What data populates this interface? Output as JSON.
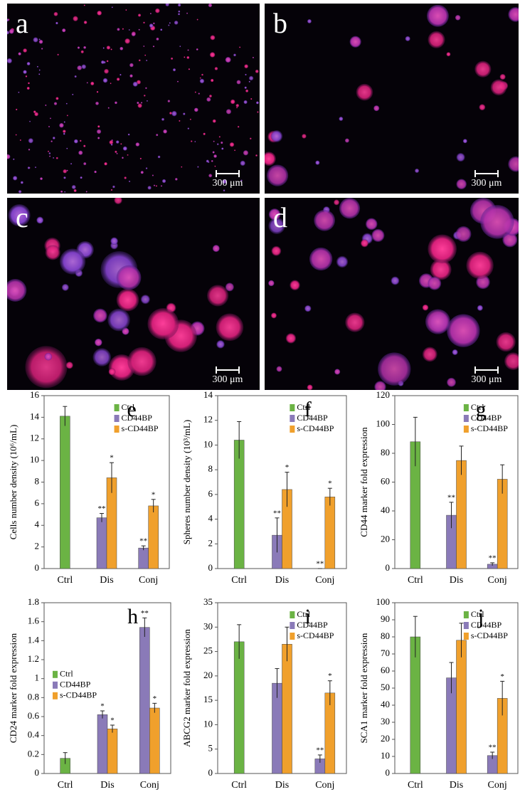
{
  "panels": [
    {
      "label": "a",
      "scale_bar": "300 μm"
    },
    {
      "label": "b",
      "scale_bar": "300 μm"
    },
    {
      "label": "c",
      "scale_bar": "300 μm"
    },
    {
      "label": "d",
      "scale_bar": "300 μm"
    }
  ],
  "chart_data": [
    {
      "type": "bar",
      "label": "e",
      "ylabel": "Cells number density (10⁶/mL)",
      "categories": [
        "Ctrl",
        "Dis",
        "Conj"
      ],
      "ylim": [
        0,
        16
      ],
      "yticks": [
        0,
        2,
        4,
        6,
        8,
        10,
        12,
        14,
        16
      ],
      "legend": "upper right",
      "series": [
        {
          "name": "Ctrl",
          "color": "#6bb344",
          "values": [
            14.1,
            null,
            null
          ],
          "errors": [
            0.9,
            null,
            null
          ],
          "annotations": [
            null,
            null,
            null
          ]
        },
        {
          "name": "CD44BP",
          "color": "#8a7ab8",
          "values": [
            null,
            4.7,
            1.9
          ],
          "errors": [
            null,
            0.4,
            0.2
          ],
          "annotations": [
            null,
            "**",
            "**"
          ]
        },
        {
          "name": "s-CD44BP",
          "color": "#f0a02c",
          "values": [
            null,
            8.4,
            5.8
          ],
          "errors": [
            null,
            1.4,
            0.6
          ],
          "annotations": [
            null,
            "*",
            "*"
          ]
        }
      ]
    },
    {
      "type": "bar",
      "label": "f",
      "ylabel": "Spheres number density (10³/mL)",
      "categories": [
        "Ctrl",
        "Dis",
        "Conj"
      ],
      "ylim": [
        0,
        14
      ],
      "yticks": [
        0,
        2,
        4,
        6,
        8,
        10,
        12,
        14
      ],
      "legend": "upper right",
      "series": [
        {
          "name": "Ctrl",
          "color": "#6bb344",
          "values": [
            10.4,
            null,
            null
          ],
          "errors": [
            1.5,
            null,
            null
          ],
          "annotations": [
            null,
            null,
            null
          ]
        },
        {
          "name": "CD44BP",
          "color": "#8a7ab8",
          "values": [
            null,
            2.7,
            0
          ],
          "errors": [
            null,
            1.4,
            0
          ],
          "annotations": [
            null,
            "**",
            "**"
          ]
        },
        {
          "name": "s-CD44BP",
          "color": "#f0a02c",
          "values": [
            null,
            6.4,
            5.8
          ],
          "errors": [
            null,
            1.4,
            0.7
          ],
          "annotations": [
            null,
            "*",
            "*"
          ]
        }
      ]
    },
    {
      "type": "bar",
      "label": "g",
      "ylabel": "CD44 marker fold expression",
      "categories": [
        "Ctrl",
        "Dis",
        "Conj"
      ],
      "ylim": [
        0,
        120
      ],
      "yticks": [
        0,
        20,
        40,
        60,
        80,
        100,
        120
      ],
      "legend": "upper right",
      "series": [
        {
          "name": "Ctrl",
          "color": "#6bb344",
          "values": [
            88,
            null,
            null
          ],
          "errors": [
            17,
            null,
            null
          ],
          "annotations": [
            null,
            null,
            null
          ]
        },
        {
          "name": "CD44BP",
          "color": "#8a7ab8",
          "values": [
            null,
            37,
            3
          ],
          "errors": [
            null,
            9,
            1
          ],
          "annotations": [
            null,
            "**",
            "**"
          ]
        },
        {
          "name": "s-CD44BP",
          "color": "#f0a02c",
          "values": [
            null,
            75,
            62
          ],
          "errors": [
            null,
            10,
            10
          ],
          "annotations": [
            null,
            null,
            null
          ]
        }
      ]
    },
    {
      "type": "bar",
      "label": "h",
      "ylabel": "CD24 marker fold expression",
      "categories": [
        "Ctrl",
        "Dis",
        "Conj"
      ],
      "ylim": [
        0,
        1.8
      ],
      "yticks": [
        0,
        0.2,
        0.4,
        0.6,
        0.8,
        1,
        1.2,
        1.4,
        1.6,
        1.8
      ],
      "legend": "center left",
      "series": [
        {
          "name": "Ctrl",
          "color": "#6bb344",
          "values": [
            0.16,
            null,
            null
          ],
          "errors": [
            0.06,
            null,
            null
          ],
          "annotations": [
            null,
            null,
            null
          ]
        },
        {
          "name": "CD44BP",
          "color": "#8a7ab8",
          "values": [
            null,
            0.62,
            1.54
          ],
          "errors": [
            null,
            0.04,
            0.1
          ],
          "annotations": [
            null,
            "*",
            "**"
          ]
        },
        {
          "name": "s-CD44BP",
          "color": "#f0a02c",
          "values": [
            null,
            0.47,
            0.69
          ],
          "errors": [
            null,
            0.04,
            0.05
          ],
          "annotations": [
            null,
            "*",
            "*"
          ]
        }
      ]
    },
    {
      "type": "bar",
      "label": "i",
      "ylabel": "ABCG2 marker fold expression",
      "categories": [
        "Ctrl",
        "Dis",
        "Conj"
      ],
      "ylim": [
        0,
        35
      ],
      "yticks": [
        0,
        5,
        10,
        15,
        20,
        25,
        30,
        35
      ],
      "legend": "upper right",
      "series": [
        {
          "name": "Ctrl",
          "color": "#6bb344",
          "values": [
            27,
            null,
            null
          ],
          "errors": [
            3.5,
            null,
            null
          ],
          "annotations": [
            null,
            null,
            null
          ]
        },
        {
          "name": "CD44BP",
          "color": "#8a7ab8",
          "values": [
            null,
            18.5,
            3
          ],
          "errors": [
            null,
            3,
            0.8
          ],
          "annotations": [
            null,
            null,
            "**"
          ]
        },
        {
          "name": "s-CD44BP",
          "color": "#f0a02c",
          "values": [
            null,
            26.5,
            16.5
          ],
          "errors": [
            null,
            3.5,
            2.5
          ],
          "annotations": [
            null,
            null,
            "*"
          ]
        }
      ]
    },
    {
      "type": "bar",
      "label": "j",
      "ylabel": "SCA1 marker fold expression",
      "categories": [
        "Ctrl",
        "Dis",
        "Conj"
      ],
      "ylim": [
        0,
        100
      ],
      "yticks": [
        0,
        10,
        20,
        30,
        40,
        50,
        60,
        70,
        80,
        90,
        100
      ],
      "legend": "upper right",
      "series": [
        {
          "name": "Ctrl",
          "color": "#6bb344",
          "values": [
            80,
            null,
            null
          ],
          "errors": [
            12,
            null,
            null
          ],
          "annotations": [
            null,
            null,
            null
          ]
        },
        {
          "name": "CD44BP",
          "color": "#8a7ab8",
          "values": [
            null,
            56,
            10.5
          ],
          "errors": [
            null,
            9,
            2
          ],
          "annotations": [
            null,
            null,
            "**"
          ]
        },
        {
          "name": "s-CD44BP",
          "color": "#f0a02c",
          "values": [
            null,
            78,
            44
          ],
          "errors": [
            null,
            10,
            10
          ],
          "annotations": [
            null,
            null,
            "*"
          ]
        }
      ]
    }
  ]
}
